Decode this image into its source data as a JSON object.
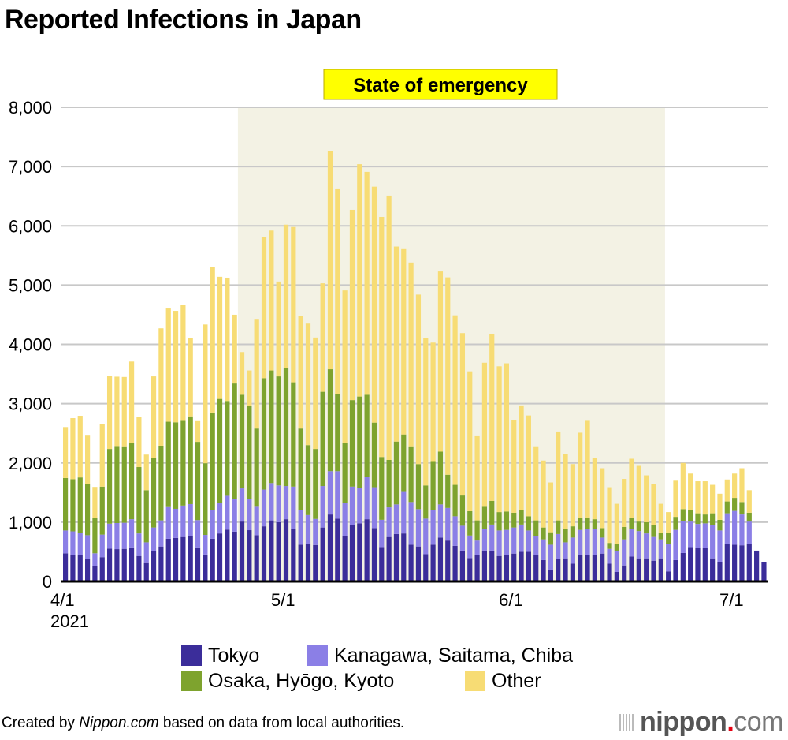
{
  "title": "Reported Infections in Japan",
  "footer": {
    "prefix": "Created by ",
    "brand": "Nippon.com",
    "suffix": " based on data from local authorities."
  },
  "logo": {
    "name": "nippon",
    "dot": ".",
    "tld": "com"
  },
  "chart_data": {
    "type": "bar",
    "stacked": true,
    "title": "Reported Infections in Japan",
    "xlabel": "",
    "ylabel": "",
    "ylim": [
      0,
      8000
    ],
    "yticks": [
      0,
      1000,
      2000,
      3000,
      4000,
      5000,
      6000,
      7000,
      8000
    ],
    "ytick_labels": [
      "0",
      "1,000",
      "2,000",
      "3,000",
      "4,000",
      "5,000",
      "6,000",
      "7,000",
      "8,000"
    ],
    "grid": true,
    "xtick_labels": [
      {
        "index": 0,
        "label": "4/1",
        "sublabel": "2021"
      },
      {
        "index": 30,
        "label": "5/1"
      },
      {
        "index": 61,
        "label": "6/1"
      },
      {
        "index": 91,
        "label": "7/1"
      }
    ],
    "x_start": "2021-04-01",
    "annotation": {
      "label": "State of emergency",
      "start_index": 24,
      "end_index": 81,
      "color": "#f3f2e4",
      "label_bg": "#ffff00"
    },
    "legend_position": "bottom",
    "colors": {
      "tokyo": "#3b2d9a",
      "kanto": "#8b7fe6",
      "kansai": "#7ea32e",
      "other": "#f7dc74"
    },
    "series": [
      {
        "name": "Tokyo",
        "key": "tokyo",
        "values": [
          475,
          440,
          445,
          380,
          260,
          410,
          555,
          545,
          550,
          575,
          430,
          310,
          510,
          590,
          720,
          735,
          750,
          760,
          575,
          455,
          720,
          810,
          875,
          840,
          1010,
          865,
          780,
          930,
          1030,
          1000,
          1050,
          880,
          620,
          630,
          615,
          910,
          1130,
          1060,
          770,
          950,
          980,
          1050,
          900,
          580,
          750,
          800,
          810,
          620,
          590,
          460,
          620,
          740,
          690,
          600,
          520,
          395,
          450,
          520,
          520,
          430,
          440,
          470,
          500,
          500,
          450,
          360,
          200,
          380,
          390,
          300,
          440,
          440,
          450,
          470,
          300,
          160,
          270,
          420,
          390,
          390,
          350,
          390,
          170,
          360,
          480,
          580,
          560,
          570,
          390,
          330,
          630,
          620,
          610,
          630,
          520,
          330
        ]
      },
      {
        "name": "Kanagawa, Saitama, Chiba",
        "key": "kanto",
        "values": [
          385,
          405,
          380,
          400,
          215,
          380,
          420,
          440,
          440,
          475,
          380,
          350,
          400,
          440,
          535,
          490,
          530,
          545,
          460,
          330,
          490,
          520,
          570,
          550,
          560,
          525,
          480,
          620,
          630,
          620,
          560,
          720,
          580,
          490,
          440,
          700,
          730,
          800,
          550,
          650,
          600,
          720,
          690,
          460,
          500,
          500,
          700,
          720,
          630,
          600,
          580,
          560,
          550,
          500,
          420,
          380,
          240,
          360,
          440,
          430,
          430,
          440,
          460,
          360,
          320,
          350,
          420,
          420,
          270,
          440,
          430,
          450,
          440,
          270,
          250,
          350,
          440,
          460,
          460,
          420,
          400,
          320,
          460,
          510,
          540,
          430,
          410,
          410,
          560,
          530,
          520,
          570,
          520,
          380
        ]
      },
      {
        "name": "Osaka, Hyōgo, Kyoto",
        "key": "kansai",
        "values": [
          885,
          880,
          930,
          870,
          600,
          810,
          1260,
          1300,
          1290,
          1290,
          1120,
          880,
          1170,
          1260,
          1440,
          1460,
          1430,
          1480,
          1320,
          1210,
          1640,
          1750,
          1600,
          1950,
          1580,
          1570,
          1320,
          1880,
          1900,
          1840,
          1990,
          1760,
          1380,
          1180,
          1180,
          1590,
          1720,
          1300,
          1020,
          1460,
          1540,
          1380,
          1090,
          1060,
          800,
          1060,
          970,
          940,
          760,
          560,
          830,
          890,
          560,
          530,
          510,
          410,
          340,
          380,
          400,
          310,
          310,
          250,
          240,
          240,
          260,
          200,
          210,
          230,
          220,
          190,
          200,
          190,
          160,
          160,
          100,
          120,
          210,
          190,
          160,
          190,
          200,
          110,
          190,
          220,
          200,
          200,
          180,
          150,
          200,
          180,
          200,
          220,
          210,
          150
        ]
      },
      {
        "name": "Other",
        "key": "other",
        "values": [
          860,
          1030,
          1040,
          810,
          520,
          1060,
          1230,
          1170,
          1170,
          1370,
          850,
          600,
          1380,
          1980,
          1910,
          1880,
          1960,
          1320,
          350,
          2340,
          2450,
          2060,
          2080,
          1160,
          720,
          600,
          1850,
          2380,
          2360,
          1600,
          2420,
          2620,
          1900,
          2050,
          1880,
          1830,
          3680,
          3470,
          2570,
          3210,
          3920,
          3760,
          3980,
          4050,
          4460,
          3290,
          3140,
          3100,
          2860,
          2480,
          2000,
          3040,
          3330,
          2860,
          2740,
          2360,
          1420,
          2430,
          2820,
          2460,
          2500,
          1560,
          1770,
          1700,
          1250,
          1130,
          840,
          1500,
          1270,
          1050,
          1440,
          1630,
          1030,
          1010,
          940,
          680,
          810,
          1000,
          940,
          790,
          700,
          490,
          350,
          610,
          780,
          610,
          540,
          560,
          480,
          440,
          370,
          410,
          570,
          380
        ]
      }
    ]
  }
}
